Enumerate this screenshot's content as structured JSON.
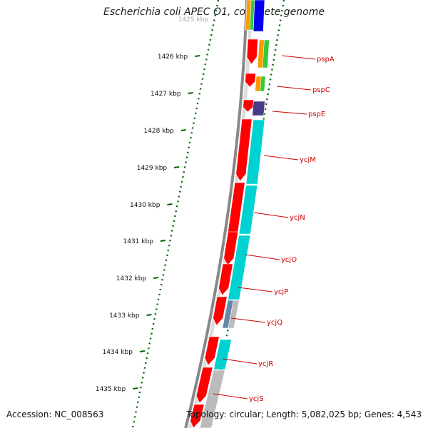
{
  "title": "Escherichia coli APEC O1, complete genome",
  "accession": "Accession: NC_008563",
  "topology": "Topology: circular; Length: 5,082,025 bp; Genes: 4,543",
  "top_tick_label": "1425 kbp",
  "ticks": [
    "1426 kbp",
    "1427 kbp",
    "1428 kbp",
    "1429 kbp",
    "1430 kbp",
    "1431 kbp",
    "1432 kbp",
    "1433 kbp",
    "1434 kbp",
    "1435 kbp"
  ],
  "genes": [
    "pspA",
    "pspC",
    "pspE",
    "ycjM",
    "ycjN",
    "ycjO",
    "ycjP",
    "ycjQ",
    "ycjR",
    "ycjS"
  ],
  "colors": {
    "cds": "#ff0000",
    "teal": "#00d2d2",
    "grey": "#bbbbbb",
    "orange": "#ff9900",
    "green": "#33cc33",
    "blue": "#0000ee",
    "purple": "#4a3a8a",
    "steel": "#6688aa",
    "backbone": "#888888",
    "tick": "#006600",
    "label": "#cc0000"
  }
}
